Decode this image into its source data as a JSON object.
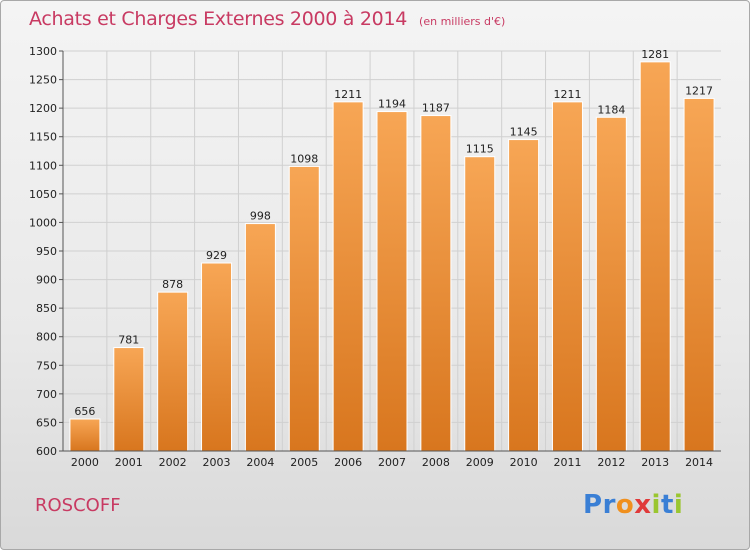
{
  "header": {
    "title": "Achats et Charges Externes 2000 à 2014",
    "subtitle": "(en milliers d'€)"
  },
  "footer": {
    "commune": "ROSCOFF",
    "logo_text": "Proxiti",
    "logo_colors": [
      "#3a7fd5",
      "#3a7fd5",
      "#f0901e",
      "#e03a3a",
      "#9ac630",
      "#3a7fd5",
      "#9ac630"
    ]
  },
  "colors": {
    "title": "#c83a62",
    "bar_light": "#f7a655",
    "bar_dark": "#d8761e",
    "grid": "#d0d0d0"
  },
  "chart_data": {
    "type": "bar",
    "categories": [
      "2000",
      "2001",
      "2002",
      "2003",
      "2004",
      "2005",
      "2006",
      "2007",
      "2008",
      "2009",
      "2010",
      "2011",
      "2012",
      "2013",
      "2014"
    ],
    "values": [
      656,
      781,
      878,
      929,
      998,
      1098,
      1211,
      1194,
      1187,
      1115,
      1145,
      1211,
      1184,
      1281,
      1217
    ],
    "y_ticks": [
      600,
      650,
      700,
      750,
      800,
      850,
      900,
      950,
      1000,
      1050,
      1100,
      1150,
      1200,
      1250,
      1300
    ],
    "ylim": [
      600,
      1300
    ],
    "grid": true,
    "data_labels": true
  }
}
